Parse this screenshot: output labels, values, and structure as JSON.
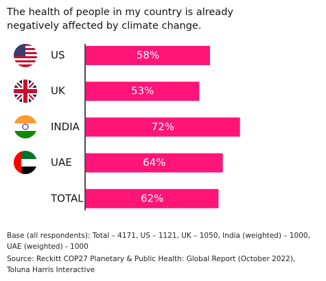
{
  "chart_data": {
    "type": "bar",
    "orientation": "horizontal",
    "title": "The health of people in my country is already negatively affected by climate change.",
    "categories": [
      "US",
      "UK",
      "INDIA",
      "UAE",
      "TOTAL"
    ],
    "values": [
      58,
      53,
      72,
      64,
      62
    ],
    "value_labels": [
      "58%",
      "53%",
      "72%",
      "64%",
      "62%"
    ],
    "color": "#ff1477",
    "notes": [
      "Base (all respondents): Total – 4171, US – 1121, UK – 1050, India (weighted) – 1000, UAE (weighted) - 1000",
      "Source: Reckitt COP27 Planetary & Public Health: Global Report (October 2022), Toluna Harris Interactive"
    ]
  }
}
